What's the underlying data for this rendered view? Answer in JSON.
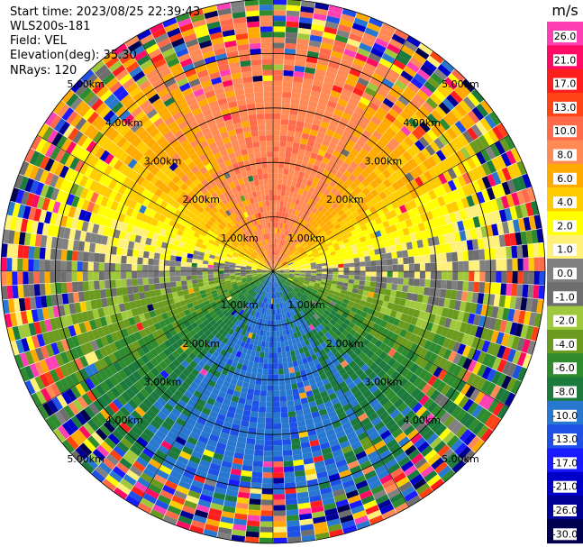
{
  "info": {
    "start_time": "Start time: 2023/08/25 22:39:43",
    "instrument": "WLS200s-181",
    "field": "Field: VEL",
    "elevation": "Elevation(deg): 35.30",
    "nrays": "NRays: 120"
  },
  "chart_data": {
    "type": "heatmap",
    "subtype": "ppi-polar",
    "field": "VEL",
    "nrays": 120,
    "rings": [
      {
        "label": "1.00km",
        "radius_km": 1.0
      },
      {
        "label": "2.00km",
        "radius_km": 2.0
      },
      {
        "label": "3.00km",
        "radius_km": 3.0
      },
      {
        "label": "4.00km",
        "radius_km": 4.0
      },
      {
        "label": "5.00km",
        "radius_km": 5.0
      }
    ],
    "colorbar": {
      "unit": "m/s",
      "ticks": [
        "26.0",
        "21.0",
        "17.0",
        "13.0",
        "10.0",
        "8.0",
        "6.0",
        "4.0",
        "2.0",
        "1.0",
        "0.0",
        "-1.0",
        "-2.0",
        "-4.0",
        "-6.0",
        "-8.0",
        "-10.0",
        "-13.0",
        "-17.0",
        "-21.0",
        "-26.0",
        "-30.0"
      ],
      "colors": [
        "#ff3fb4",
        "#ff0a64",
        "#ff1e1e",
        "#ff4314",
        "#ff6b4a",
        "#ff8a56",
        "#ffaa00",
        "#ffcc00",
        "#ffff00",
        "#fff07a",
        "#808080",
        "#6e6e6e",
        "#a0c83c",
        "#6a9a1e",
        "#2e8b2e",
        "#1b7a3c",
        "#2878d0",
        "#1e50e6",
        "#1a1aff",
        "#0000c8",
        "#000096",
        "#000050"
      ]
    }
  }
}
